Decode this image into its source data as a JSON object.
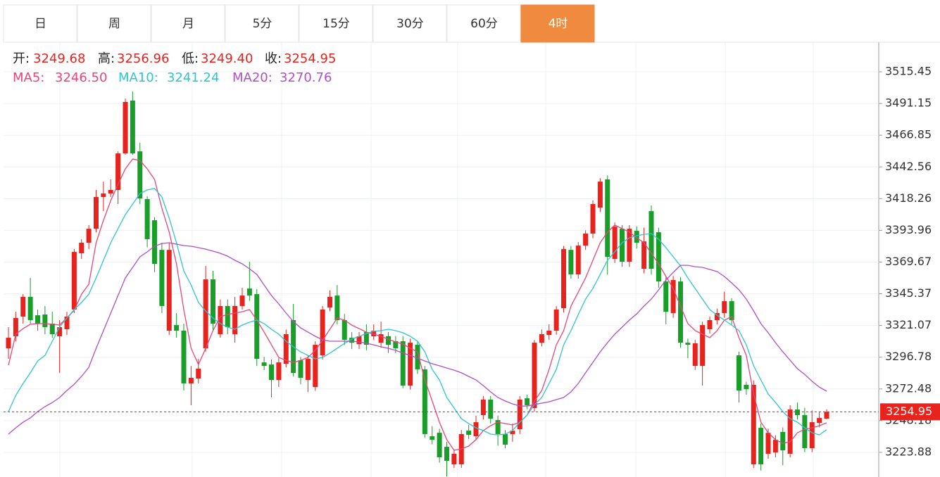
{
  "chart_data": {
    "type": "candlestick",
    "tabs": [
      {
        "label": "日"
      },
      {
        "label": "周"
      },
      {
        "label": "月"
      },
      {
        "label": "5分"
      },
      {
        "label": "15分"
      },
      {
        "label": "30分"
      },
      {
        "label": "60分"
      },
      {
        "label": "4时",
        "selected": true
      }
    ],
    "current": {
      "labels": [
        "开:",
        "高:",
        "低:",
        "收:"
      ],
      "value_labels": [
        "3249.68",
        "3256.96",
        "3249.40",
        "3254.95"
      ]
    },
    "up_color": "#e8221c",
    "down_color": "#1a9e2a",
    "ylim": [
      3205.0,
      3538.1
    ],
    "yticks": [
      3223.88,
      3248.18,
      3272.48,
      3296.78,
      3321.07,
      3345.37,
      3369.67,
      3393.96,
      3418.26,
      3442.56,
      3466.85,
      3491.15,
      3515.45
    ],
    "grid": true,
    "last_price_line": true,
    "open": [
      3303.6,
      3312.8,
      3327.9,
      3343.0,
      3328.9,
      3329.5,
      3322.5,
      3312.8,
      3318.2,
      3333.3,
      3376.4,
      3384.5,
      3395.2,
      3419.5,
      3422.2,
      3424.9,
      3452.9,
      3493.4,
      3454.5,
      3417.9,
      3401.7,
      3379.0,
      3317.1,
      3321.4,
      3317.1,
      3276.7,
      3280.4,
      3303.6,
      3356.4,
      3314.4,
      3336.0,
      3314.4,
      3336.0,
      3349.4,
      3345.1,
      3292.8,
      3291.2,
      3279.3,
      3291.7,
      3325.2,
      3294.4,
      3279.3,
      3273.9,
      3298.2,
      3334.9,
      3344.0,
      3325.2,
      3311.7,
      3306.8,
      3316.0,
      3312.8,
      3307.9,
      3312.8,
      3309.0,
      3309.0,
      3275.0,
      3306.3,
      3287.4,
      3236.2,
      3238.9,
      3228.1,
      3214.7,
      3214.7,
      3240.5,
      3236.2,
      3252.4,
      3264.3,
      3248.6,
      3237.9,
      3237.9,
      3241.6,
      3265.3,
      3257.8,
      3307.9,
      3313.8,
      3317.1,
      3334.3,
      3379.0,
      3360.2,
      3382.3,
      3391.5,
      3411.4,
      3433.0,
      3372.0,
      3395.2,
      3369.9,
      3393.6,
      3364.5,
      3408.7,
      3392.5,
      3354.8,
      3330.6,
      3354.8,
      3307.9,
      3290.1,
      3290.1,
      3318.2,
      3325.2,
      3330.6,
      3339.7,
      3298.2,
      3275.6,
      3214.7,
      3242.7,
      3222.8,
      3223.8,
      3239.5,
      3222.8,
      3256.7,
      3252.4,
      3227.1,
      3246.5,
      3249.68
    ],
    "high": [
      3319.8,
      3331.6,
      3345.1,
      3357.5,
      3333.3,
      3336.0,
      3331.6,
      3325.2,
      3331.6,
      3379.6,
      3387.2,
      3398.0,
      3424.9,
      3431.3,
      3433.0,
      3454.5,
      3495.0,
      3500.3,
      3461.0,
      3420.0,
      3404.0,
      3384.5,
      3384.5,
      3330.6,
      3322.5,
      3290.1,
      3295.5,
      3366.7,
      3363.0,
      3341.0,
      3341.0,
      3343.0,
      3350.0,
      3369.9,
      3349.0,
      3297.0,
      3295.0,
      3296.0,
      3318.0,
      3337.6,
      3297.0,
      3298.0,
      3309.0,
      3336.0,
      3348.0,
      3352.1,
      3330.0,
      3316.0,
      3316.0,
      3322.0,
      3322.0,
      3324.0,
      3316.0,
      3313.0,
      3313.0,
      3311.0,
      3309.0,
      3290.0,
      3244.0,
      3242.0,
      3232.0,
      3226.0,
      3241.0,
      3245.0,
      3252.0,
      3267.0,
      3267.0,
      3252.0,
      3241.0,
      3246.0,
      3267.0,
      3268.0,
      3310.0,
      3318.0,
      3322.0,
      3336.0,
      3382.0,
      3382.0,
      3385.0,
      3394.0,
      3417.0,
      3434.0,
      3436.0,
      3400.0,
      3398.0,
      3398.0,
      3397.0,
      3396.0,
      3413.0,
      3396.0,
      3358.0,
      3359.0,
      3358.0,
      3311.0,
      3310.0,
      3324.0,
      3328.0,
      3334.0,
      3347.0,
      3342.0,
      3301.0,
      3278.0,
      3279.0,
      3246.0,
      3242.0,
      3237.0,
      3243.0,
      3260.0,
      3262.0,
      3258.0,
      3256.0,
      3255.0,
      3256.96
    ],
    "low": [
      3295.5,
      3309.0,
      3322.5,
      3322.5,
      3317.1,
      3314.4,
      3311.7,
      3284.7,
      3313.8,
      3330.6,
      3372.0,
      3379.6,
      3392.5,
      3408.7,
      3419.5,
      3414.1,
      3451.8,
      3451.8,
      3414.1,
      3381.0,
      3362.0,
      3330.6,
      3313.8,
      3311.7,
      3271.3,
      3260.0,
      3276.7,
      3301.0,
      3317.1,
      3311.7,
      3314.4,
      3308.0,
      3333.3,
      3340.0,
      3290.1,
      3287.0,
      3266.0,
      3274.0,
      3289.0,
      3282.0,
      3276.0,
      3270.0,
      3271.0,
      3295.0,
      3332.0,
      3322.0,
      3306.0,
      3303.0,
      3303.0,
      3302.0,
      3310.0,
      3304.0,
      3300.0,
      3300.0,
      3273.0,
      3272.0,
      3284.0,
      3235.0,
      3230.0,
      3216.0,
      3205.5,
      3212.0,
      3212.0,
      3234.0,
      3233.0,
      3249.0,
      3246.0,
      3229.0,
      3227.0,
      3232.0,
      3238.0,
      3257.0,
      3255.0,
      3305.0,
      3310.0,
      3314.0,
      3331.0,
      3357.0,
      3357.0,
      3379.0,
      3388.0,
      3408.0,
      3360.0,
      3369.0,
      3366.0,
      3366.0,
      3380.0,
      3361.0,
      3360.0,
      3350.0,
      3322.0,
      3327.0,
      3304.0,
      3296.0,
      3287.0,
      3275.0,
      3315.0,
      3322.0,
      3327.0,
      3322.0,
      3262.0,
      3268.0,
      3212.0,
      3210.0,
      3219.0,
      3220.0,
      3214.0,
      3220.0,
      3249.0,
      3224.0,
      3224.0,
      3243.0,
      3249.4
    ],
    "close": [
      3311.7,
      3326.8,
      3343.0,
      3325.2,
      3322.5,
      3319.8,
      3314.4,
      3319.8,
      3327.9,
      3377.4,
      3384.5,
      3395.2,
      3419.5,
      3422.2,
      3424.9,
      3452.9,
      3492.3,
      3452.9,
      3418.4,
      3387.2,
      3368.3,
      3336.0,
      3379.0,
      3317.1,
      3276.7,
      3281.0,
      3288.0,
      3356.4,
      3322.5,
      3336.0,
      3319.8,
      3336.0,
      3344.0,
      3344.0,
      3295.5,
      3290.1,
      3279.3,
      3292.8,
      3314.4,
      3284.7,
      3281.0,
      3295.5,
      3306.3,
      3333.3,
      3343.0,
      3325.2,
      3310.1,
      3307.9,
      3312.8,
      3306.3,
      3317.1,
      3314.4,
      3306.3,
      3303.6,
      3275.0,
      3307.9,
      3287.4,
      3237.9,
      3233.5,
      3220.1,
      3217.4,
      3222.8,
      3237.9,
      3237.3,
      3247.0,
      3264.3,
      3249.7,
      3237.9,
      3229.8,
      3240.5,
      3264.3,
      3260.0,
      3307.9,
      3314.4,
      3317.1,
      3333.3,
      3379.6,
      3360.2,
      3382.3,
      3391.5,
      3414.1,
      3431.3,
      3373.6,
      3396.8,
      3369.9,
      3395.2,
      3384.5,
      3385.5,
      3364.5,
      3354.8,
      3331.6,
      3355.9,
      3307.9,
      3306.3,
      3307.4,
      3321.4,
      3325.2,
      3330.6,
      3339.7,
      3325.2,
      3271.3,
      3272.3,
      3275.6,
      3214.7,
      3238.9,
      3233.5,
      3225.4,
      3256.7,
      3252.4,
      3227.1,
      3247.0,
      3250.2,
      3254.95
    ],
    "series": [
      {
        "name": "MA5:",
        "color": "#e8457a",
        "current_label": "3246.50",
        "values": [
          3290.7,
          3314.4,
          3318.7,
          3322.0,
          3322.5,
          3322.5,
          3322.0,
          3321.4,
          3326.8,
          3332.7,
          3345.1,
          3352.7,
          3384.5,
          3401.7,
          3416.8,
          3429.2,
          3441.1,
          3448.6,
          3447.5,
          3441.1,
          3433.0,
          3410.9,
          3392.6,
          3368.3,
          3333.3,
          3303.6,
          3291.2,
          3303.6,
          3317.1,
          3327.9,
          3329.5,
          3330.6,
          3331.6,
          3333.3,
          3325.2,
          3316.0,
          3306.3,
          3296.6,
          3294.4,
          3292.8,
          3294.4,
          3296.6,
          3302.0,
          3309.6,
          3318.2,
          3326.8,
          3325.2,
          3321.4,
          3318.7,
          3316.0,
          3314.4,
          3312.8,
          3310.6,
          3308.5,
          3306.8,
          3303.6,
          3300.9,
          3279.4,
          3263.2,
          3247.0,
          3233.6,
          3225.5,
          3226.5,
          3228.7,
          3233.6,
          3240.6,
          3244.3,
          3247.0,
          3245.9,
          3244.9,
          3247.0,
          3252.4,
          3263.2,
          3271.3,
          3287.4,
          3306.3,
          3317.1,
          3335.9,
          3346.7,
          3357.5,
          3371.0,
          3384.5,
          3392.6,
          3398.0,
          3395.3,
          3392.6,
          3388.2,
          3384.5,
          3376.4,
          3368.3,
          3358.6,
          3349.4,
          3335.9,
          3322.5,
          3317.1,
          3314.4,
          3311.7,
          3317.1,
          3325.2,
          3327.9,
          3311.7,
          3298.2,
          3268.6,
          3247.0,
          3238.9,
          3233.6,
          3230.9,
          3231.9,
          3238.9,
          3241.6,
          3242.7,
          3244.3,
          3246.5
        ]
      },
      {
        "name": "MA10:",
        "color": "#2fc3d2",
        "current_label": "3241.24",
        "values": [
          3255.1,
          3267.5,
          3276.7,
          3284.8,
          3293.9,
          3298.2,
          3309.0,
          3319.8,
          3326.8,
          3333.3,
          3338.7,
          3345.1,
          3357.5,
          3371.0,
          3384.5,
          3395.3,
          3406.0,
          3414.1,
          3422.2,
          3424.9,
          3426.0,
          3419.5,
          3403.3,
          3384.5,
          3362.9,
          3352.1,
          3338.7,
          3332.2,
          3326.8,
          3322.5,
          3319.8,
          3318.2,
          3321.4,
          3323.6,
          3325.2,
          3322.5,
          3318.2,
          3314.4,
          3309.0,
          3304.7,
          3300.9,
          3298.2,
          3295.5,
          3296.6,
          3299.9,
          3303.6,
          3307.4,
          3310.6,
          3312.8,
          3314.9,
          3316.6,
          3317.1,
          3318.2,
          3317.1,
          3315.5,
          3312.8,
          3309.0,
          3300.9,
          3287.4,
          3279.4,
          3265.9,
          3257.8,
          3249.7,
          3245.9,
          3242.7,
          3240.6,
          3237.9,
          3237.3,
          3237.9,
          3240.6,
          3247.0,
          3252.4,
          3260.5,
          3265.9,
          3276.7,
          3287.4,
          3306.3,
          3317.1,
          3329.5,
          3341.3,
          3349.4,
          3360.2,
          3371.0,
          3377.5,
          3384.5,
          3388.2,
          3389.9,
          3390.9,
          3391.5,
          3387.2,
          3380.7,
          3373.7,
          3366.7,
          3357.5,
          3349.4,
          3341.3,
          3333.3,
          3328.9,
          3325.2,
          3321.4,
          3317.1,
          3306.3,
          3290.2,
          3279.4,
          3268.6,
          3262.1,
          3255.1,
          3249.7,
          3247.0,
          3242.7,
          3238.9,
          3237.3,
          3241.24
        ]
      },
      {
        "name": "MA20:",
        "color": "#b04ec4",
        "current_label": "3270.76",
        "values": [
          3237.9,
          3242.7,
          3247.0,
          3250.3,
          3255.1,
          3258.9,
          3262.1,
          3265.9,
          3271.3,
          3276.1,
          3282.1,
          3289.1,
          3303.6,
          3317.1,
          3330.6,
          3344.0,
          3357.5,
          3365.6,
          3373.7,
          3377.5,
          3381.8,
          3383.9,
          3384.5,
          3383.4,
          3382.3,
          3381.8,
          3380.7,
          3379.6,
          3378.0,
          3376.4,
          3374.2,
          3371.0,
          3368.3,
          3364.5,
          3360.2,
          3352.1,
          3344.0,
          3337.6,
          3330.6,
          3324.1,
          3319.2,
          3316.0,
          3312.8,
          3310.1,
          3309.0,
          3309.0,
          3309.0,
          3309.0,
          3308.5,
          3307.4,
          3306.3,
          3304.7,
          3303.6,
          3302.0,
          3299.9,
          3298.2,
          3296.1,
          3293.9,
          3291.8,
          3290.2,
          3288.5,
          3286.9,
          3284.8,
          3282.1,
          3279.4,
          3275.0,
          3270.2,
          3265.9,
          3263.2,
          3261.0,
          3259.4,
          3259.4,
          3260.5,
          3261.6,
          3262.6,
          3264.3,
          3265.9,
          3270.2,
          3276.7,
          3284.8,
          3292.8,
          3300.9,
          3307.9,
          3314.4,
          3319.8,
          3325.2,
          3330.0,
          3335.9,
          3341.3,
          3348.4,
          3355.9,
          3361.8,
          3367.2,
          3367.2,
          3366.1,
          3365.6,
          3364.0,
          3362.4,
          3358.6,
          3353.7,
          3348.4,
          3341.3,
          3332.2,
          3322.5,
          3315.5,
          3307.9,
          3300.9,
          3294.4,
          3288.0,
          3283.6,
          3278.3,
          3273.9,
          3270.76
        ]
      }
    ]
  }
}
